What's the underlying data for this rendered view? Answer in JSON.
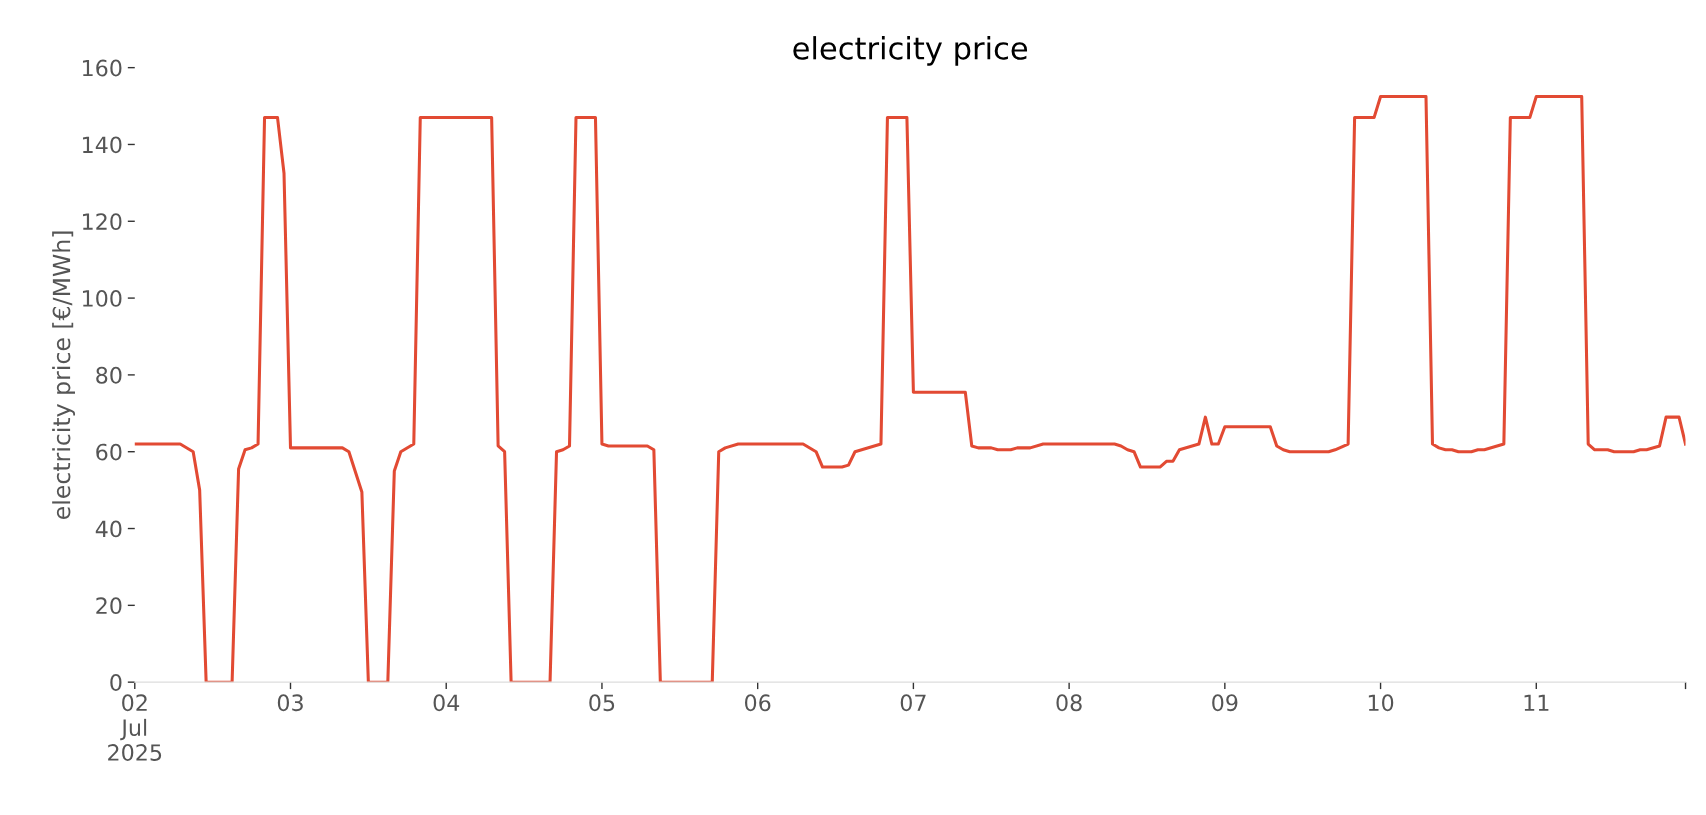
{
  "chart_data": {
    "type": "line",
    "title": "electricity price",
    "ylabel": "electricity price [€/MWh]",
    "xlim": [
      "2025-07-02T00:00",
      "2025-07-11T23:00"
    ],
    "xticks": [
      {
        "value": "2025-07-02",
        "label": "02\nJul\n2025"
      },
      {
        "value": "2025-07-03",
        "label": "03"
      },
      {
        "value": "2025-07-04",
        "label": "04"
      },
      {
        "value": "2025-07-05",
        "label": "05"
      },
      {
        "value": "2025-07-06",
        "label": "06"
      },
      {
        "value": "2025-07-07",
        "label": "07"
      },
      {
        "value": "2025-07-08",
        "label": "08"
      },
      {
        "value": "2025-07-09",
        "label": "09"
      },
      {
        "value": "2025-07-10",
        "label": "10"
      },
      {
        "value": "2025-07-11",
        "label": "11"
      },
      {
        "value": "2025-07-11T23:00",
        "label": null
      }
    ],
    "ylim": [
      0,
      160
    ],
    "yticks": [
      0,
      20,
      40,
      60,
      80,
      100,
      120,
      140,
      160
    ],
    "grid": false,
    "legend": false,
    "marker": "none",
    "line_style": "solid",
    "series": [
      {
        "color": "#e24a33",
        "x": [
          "2025-07-02T00:00",
          "2025-07-02T07:00",
          "2025-07-02T09:00",
          "2025-07-02T10:00",
          "2025-07-02T11:00",
          "2025-07-02T15:00",
          "2025-07-02T16:00",
          "2025-07-02T17:00",
          "2025-07-02T18:00",
          "2025-07-02T19:00",
          "2025-07-02T20:00",
          "2025-07-02T22:00",
          "2025-07-02T23:00",
          "2025-07-03T00:00",
          "2025-07-03T08:00",
          "2025-07-03T09:00",
          "2025-07-03T11:00",
          "2025-07-03T12:00",
          "2025-07-03T15:00",
          "2025-07-03T16:00",
          "2025-07-03T17:00",
          "2025-07-03T19:00",
          "2025-07-03T20:00",
          "2025-07-04T07:00",
          "2025-07-04T08:00",
          "2025-07-04T09:00",
          "2025-07-04T10:00",
          "2025-07-04T16:00",
          "2025-07-04T17:00",
          "2025-07-04T18:00",
          "2025-07-04T19:00",
          "2025-07-04T20:00",
          "2025-07-04T23:00",
          "2025-07-05T00:00",
          "2025-07-05T01:00",
          "2025-07-05T07:00",
          "2025-07-05T08:00",
          "2025-07-05T09:00",
          "2025-07-05T17:00",
          "2025-07-05T18:00",
          "2025-07-05T19:00",
          "2025-07-05T21:00",
          "2025-07-06T07:00",
          "2025-07-06T09:00",
          "2025-07-06T10:00",
          "2025-07-06T13:00",
          "2025-07-06T14:00",
          "2025-07-06T15:00",
          "2025-07-06T19:00",
          "2025-07-06T20:00",
          "2025-07-06T23:00",
          "2025-07-07T00:00",
          "2025-07-07T08:00",
          "2025-07-07T09:00",
          "2025-07-07T10:00",
          "2025-07-07T12:00",
          "2025-07-07T13:00",
          "2025-07-07T15:00",
          "2025-07-07T16:00",
          "2025-07-07T18:00",
          "2025-07-07T20:00",
          "2025-07-08T07:00",
          "2025-07-08T08:00",
          "2025-07-08T09:00",
          "2025-07-08T10:00",
          "2025-07-08T11:00",
          "2025-07-08T14:00",
          "2025-07-08T15:00",
          "2025-07-08T16:00",
          "2025-07-08T17:00",
          "2025-07-08T20:00",
          "2025-07-08T21:00",
          "2025-07-08T22:00",
          "2025-07-08T23:00",
          "2025-07-09T00:00",
          "2025-07-09T07:00",
          "2025-07-09T08:00",
          "2025-07-09T09:00",
          "2025-07-09T10:00",
          "2025-07-09T16:00",
          "2025-07-09T17:00",
          "2025-07-09T19:00",
          "2025-07-09T20:00",
          "2025-07-09T23:00",
          "2025-07-10T00:00",
          "2025-07-10T07:00",
          "2025-07-10T08:00",
          "2025-07-10T09:00",
          "2025-07-10T10:00",
          "2025-07-10T11:00",
          "2025-07-10T12:00",
          "2025-07-10T14:00",
          "2025-07-10T15:00",
          "2025-07-10T16:00",
          "2025-07-10T19:00",
          "2025-07-10T20:00",
          "2025-07-10T23:00",
          "2025-07-11T00:00",
          "2025-07-11T07:00",
          "2025-07-11T08:00",
          "2025-07-11T09:00",
          "2025-07-11T11:00",
          "2025-07-11T12:00",
          "2025-07-11T15:00",
          "2025-07-11T16:00",
          "2025-07-11T17:00",
          "2025-07-11T19:00",
          "2025-07-11T20:00",
          "2025-07-11T22:00",
          "2025-07-11T23:00"
        ],
        "values": [
          62,
          62,
          60,
          50,
          0,
          0,
          55.5,
          60.5,
          61,
          62,
          147,
          147,
          132.5,
          61,
          61,
          60,
          49.5,
          0,
          0,
          55,
          60,
          62,
          147,
          147,
          61.5,
          60,
          0,
          0,
          60,
          60.5,
          61.5,
          147,
          147,
          62,
          61.5,
          61.5,
          60.5,
          0,
          0,
          60,
          61,
          62,
          62,
          60,
          56,
          56,
          56.5,
          60,
          62,
          147,
          147,
          75.5,
          75.5,
          61.5,
          61,
          61,
          60.5,
          60.5,
          61,
          61,
          62,
          62,
          61.5,
          60.5,
          60,
          56,
          56,
          57.5,
          57.5,
          60.5,
          62,
          69,
          62,
          62,
          66.5,
          66.5,
          61.5,
          60.5,
          60,
          60,
          60.5,
          62,
          147,
          147,
          152.5,
          152.5,
          62,
          61,
          60.5,
          60.5,
          60,
          60,
          60.5,
          60.5,
          62,
          147,
          147,
          152.5,
          152.5,
          62,
          60.5,
          60.5,
          60,
          60,
          60.5,
          60.5,
          61.5,
          69,
          69,
          62
        ]
      }
    ]
  }
}
